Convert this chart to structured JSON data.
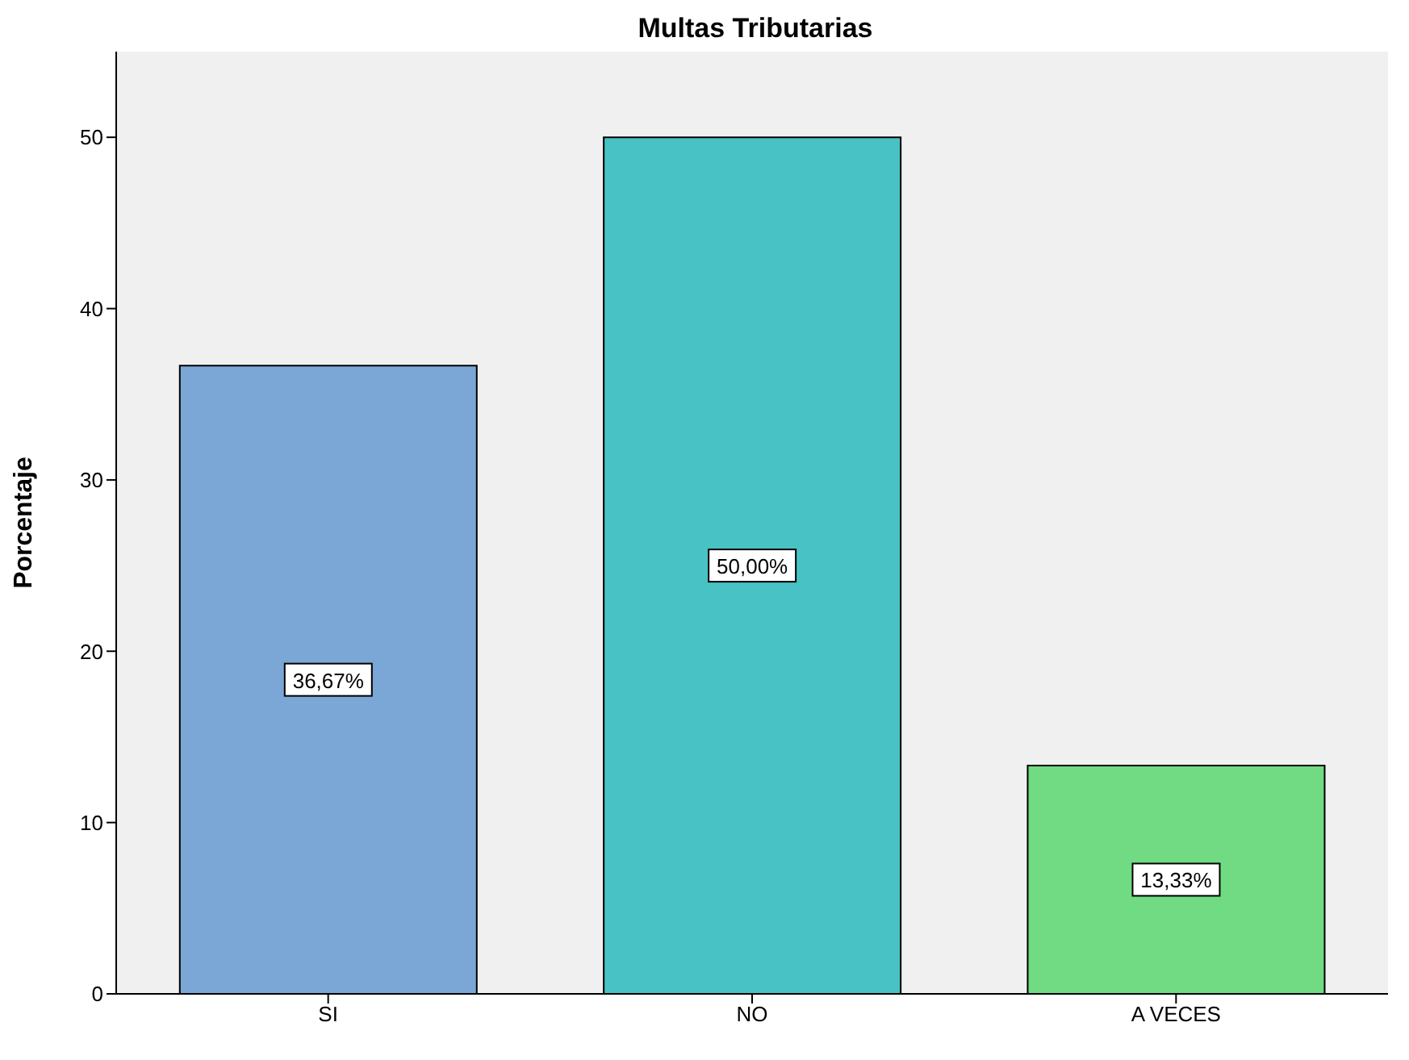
{
  "chart_data": {
    "type": "bar",
    "title": "Multas Tributarias",
    "ylabel": "Porcentaje",
    "categories": [
      "SI",
      "NO",
      "A VECES"
    ],
    "values": [
      36.67,
      50.0,
      13.33
    ],
    "colors": [
      "#7ba7d6",
      "#48c2c5",
      "#70db82"
    ],
    "value_labels": [
      "36,67%",
      "50,00%",
      "13,33%"
    ],
    "ylim": [
      0,
      55
    ],
    "yticks": [
      0,
      10,
      20,
      30,
      40,
      50
    ],
    "grid": false
  }
}
